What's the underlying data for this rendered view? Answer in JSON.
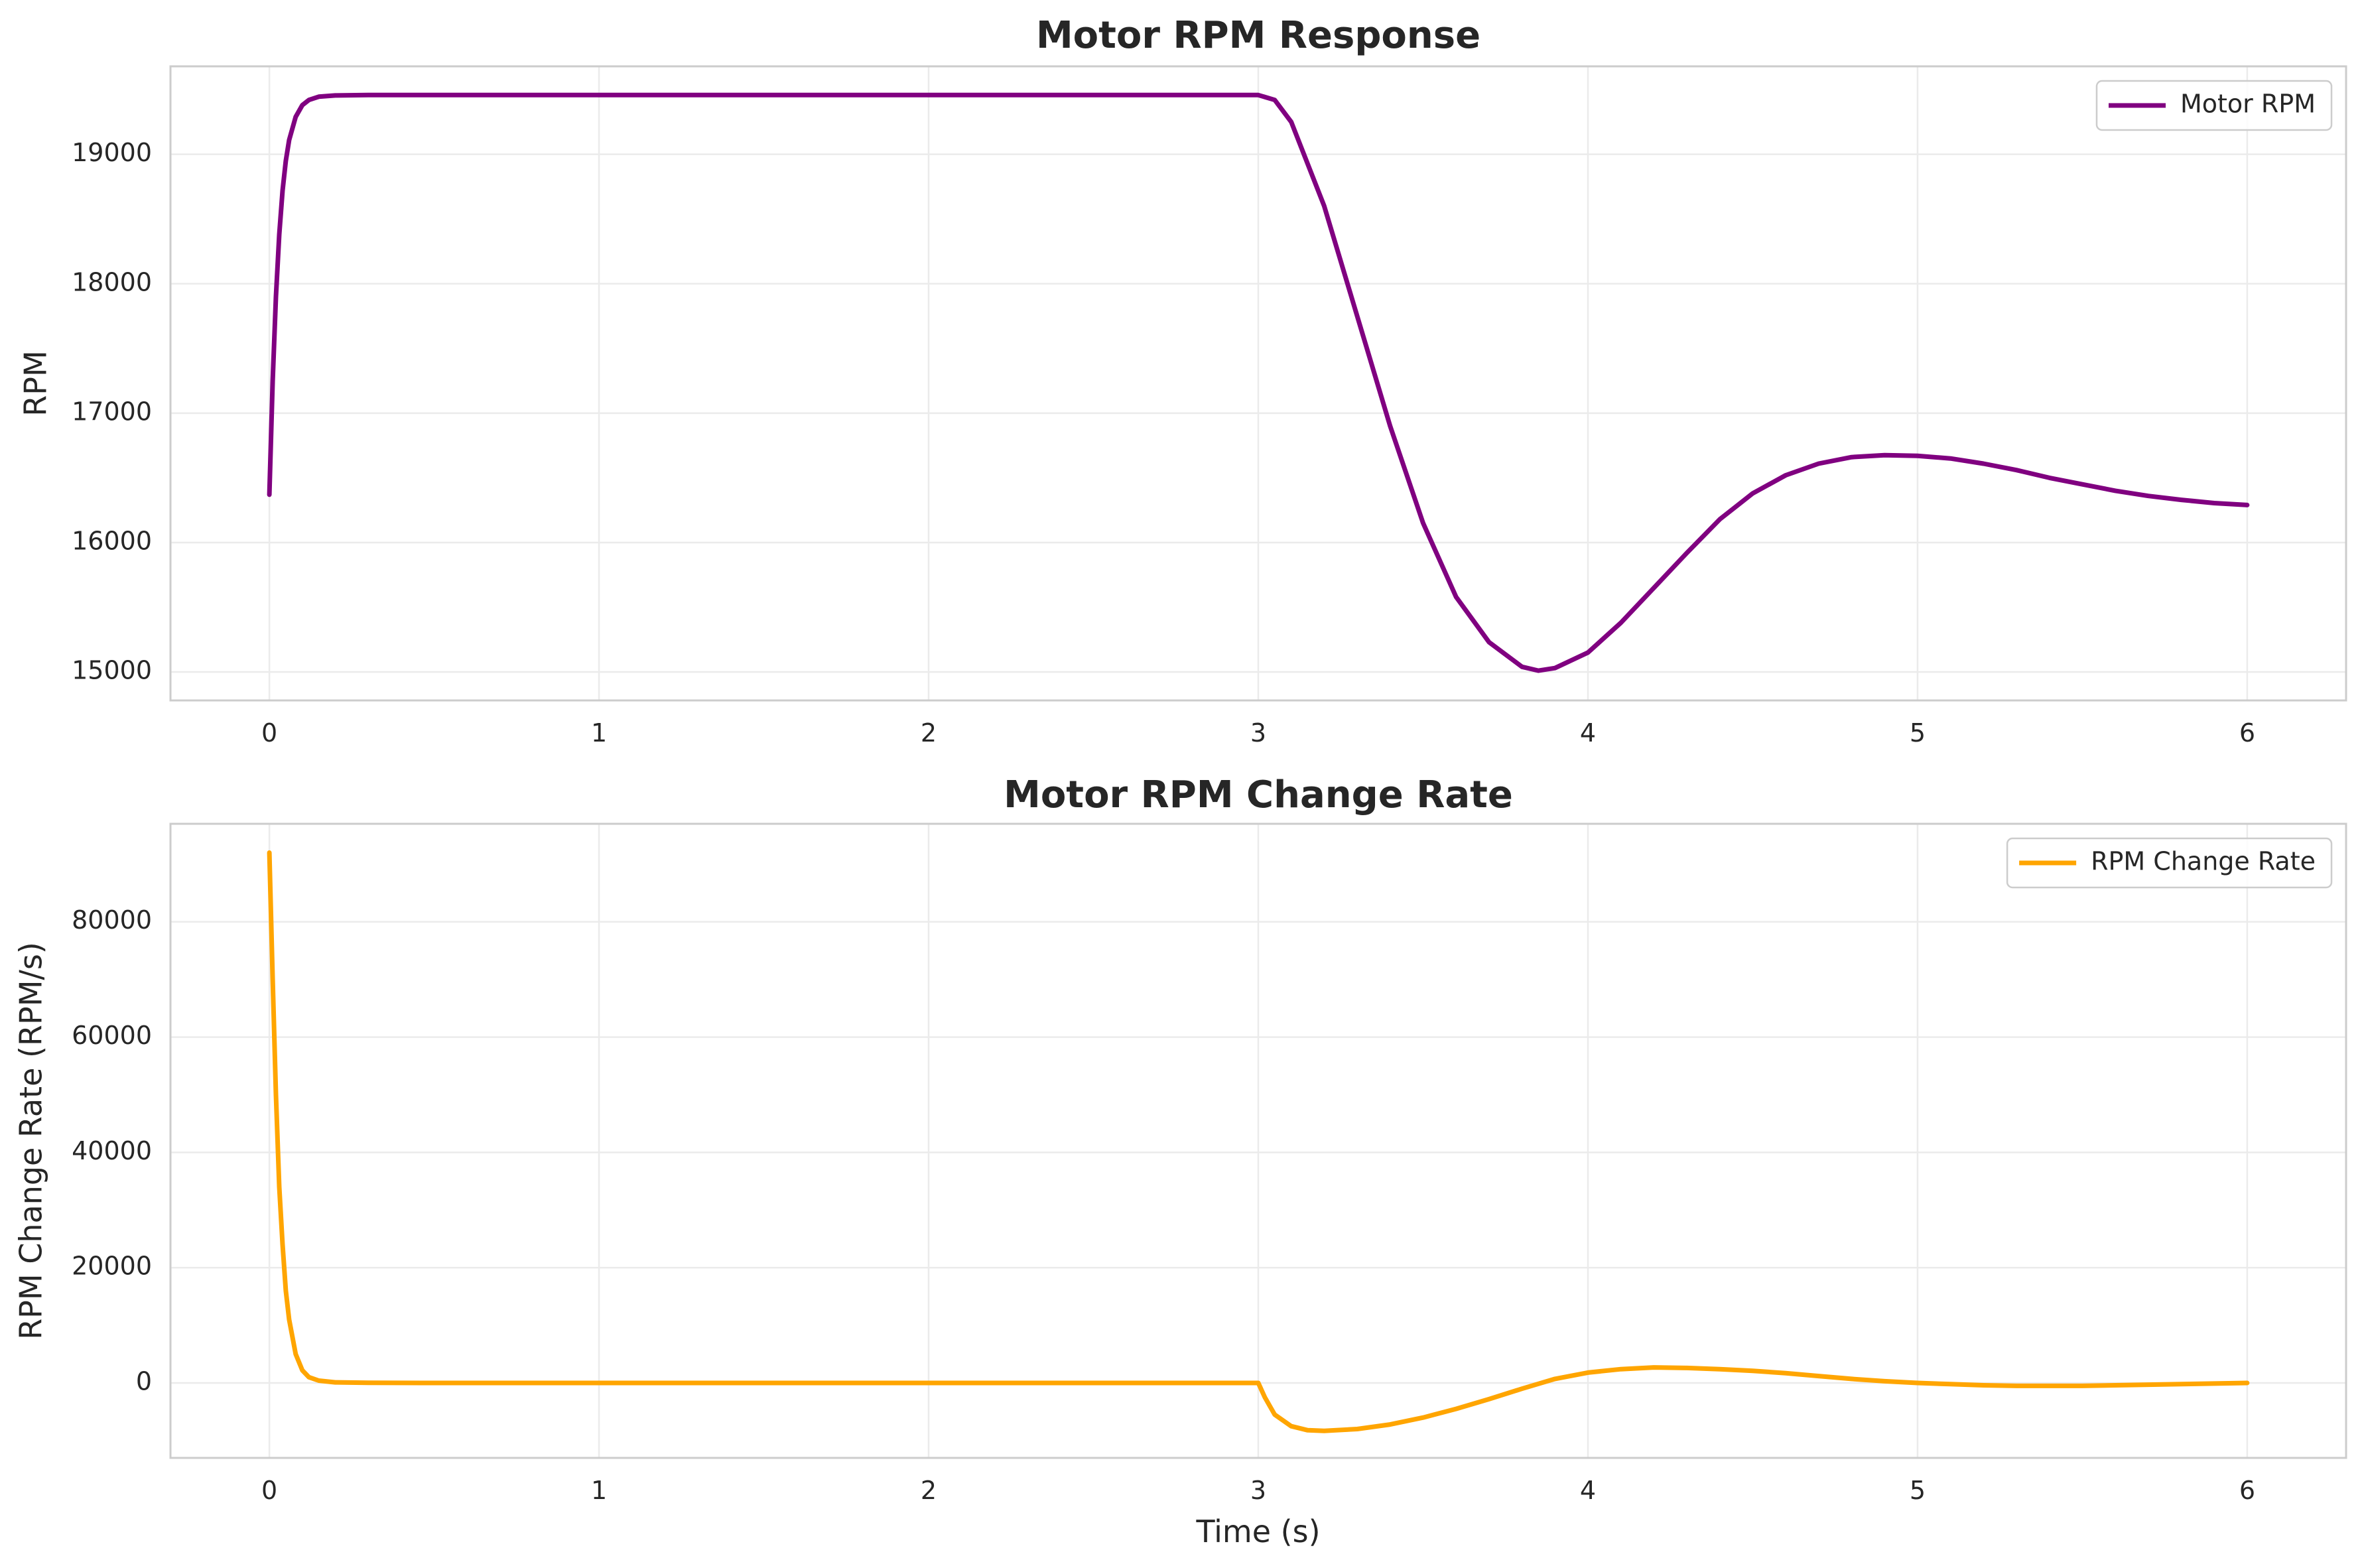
{
  "chart_data": [
    {
      "type": "line",
      "title": "Motor RPM Response",
      "xlabel": "",
      "ylabel": "RPM",
      "xlim": [
        -0.3,
        6.3
      ],
      "ylim": [
        14780,
        19680
      ],
      "xticks": [
        0,
        1,
        2,
        3,
        4,
        5,
        6
      ],
      "yticks": [
        15000,
        16000,
        17000,
        18000,
        19000
      ],
      "grid": true,
      "legend": "top-right",
      "series": [
        {
          "name": "Motor RPM",
          "color": "#800080",
          "x": [
            0,
            0.01,
            0.02,
            0.03,
            0.04,
            0.05,
            0.06,
            0.08,
            0.1,
            0.12,
            0.15,
            0.2,
            0.3,
            0.5,
            1,
            1.5,
            2,
            2.5,
            2.95,
            3.0,
            3.05,
            3.1,
            3.2,
            3.3,
            3.4,
            3.5,
            3.6,
            3.7,
            3.8,
            3.85,
            3.9,
            4.0,
            4.1,
            4.2,
            4.3,
            4.4,
            4.5,
            4.6,
            4.7,
            4.8,
            4.9,
            5.0,
            5.1,
            5.2,
            5.3,
            5.4,
            5.5,
            5.6,
            5.7,
            5.8,
            5.9,
            6.0
          ],
          "y": [
            16370,
            17250,
            17900,
            18380,
            18720,
            18950,
            19110,
            19290,
            19380,
            19420,
            19445,
            19455,
            19458,
            19458,
            19458,
            19458,
            19458,
            19458,
            19458,
            19458,
            19420,
            19250,
            18600,
            17750,
            16900,
            16150,
            15580,
            15230,
            15040,
            15010,
            15030,
            15150,
            15380,
            15650,
            15920,
            16180,
            16380,
            16520,
            16610,
            16660,
            16675,
            16670,
            16650,
            16610,
            16560,
            16500,
            16450,
            16400,
            16360,
            16330,
            16305,
            16290
          ]
        }
      ]
    },
    {
      "type": "line",
      "title": "Motor RPM Change Rate",
      "xlabel": "Time (s)",
      "ylabel": "RPM Change Rate (RPM/s)",
      "xlim": [
        -0.3,
        6.3
      ],
      "ylim": [
        -13000,
        97000
      ],
      "xticks": [
        0,
        1,
        2,
        3,
        4,
        5,
        6
      ],
      "yticks": [
        0,
        20000,
        40000,
        60000,
        80000
      ],
      "grid": true,
      "legend": "top-right",
      "series": [
        {
          "name": "RPM Change Rate",
          "color": "#FFA500",
          "x": [
            0,
            0.01,
            0.02,
            0.03,
            0.04,
            0.05,
            0.06,
            0.08,
            0.1,
            0.12,
            0.15,
            0.2,
            0.3,
            0.5,
            1,
            1.5,
            2,
            2.5,
            2.95,
            3.0,
            3.02,
            3.05,
            3.1,
            3.15,
            3.2,
            3.3,
            3.4,
            3.5,
            3.6,
            3.7,
            3.8,
            3.9,
            4.0,
            4.1,
            4.2,
            4.3,
            4.4,
            4.5,
            4.6,
            4.7,
            4.8,
            4.9,
            5.0,
            5.1,
            5.2,
            5.3,
            5.4,
            5.5,
            5.6,
            5.7,
            5.8,
            5.9,
            6.0
          ],
          "y": [
            92000,
            70000,
            50000,
            34000,
            24000,
            16000,
            11000,
            5000,
            2200,
            1000,
            400,
            100,
            20,
            0,
            0,
            0,
            0,
            0,
            0,
            0,
            -2500,
            -5500,
            -7500,
            -8200,
            -8300,
            -8000,
            -7200,
            -6000,
            -4500,
            -2800,
            -1000,
            700,
            1800,
            2400,
            2700,
            2600,
            2400,
            2100,
            1700,
            1200,
            700,
            300,
            0,
            -200,
            -400,
            -500,
            -500,
            -500,
            -400,
            -300,
            -200,
            -100,
            0
          ]
        }
      ]
    }
  ]
}
